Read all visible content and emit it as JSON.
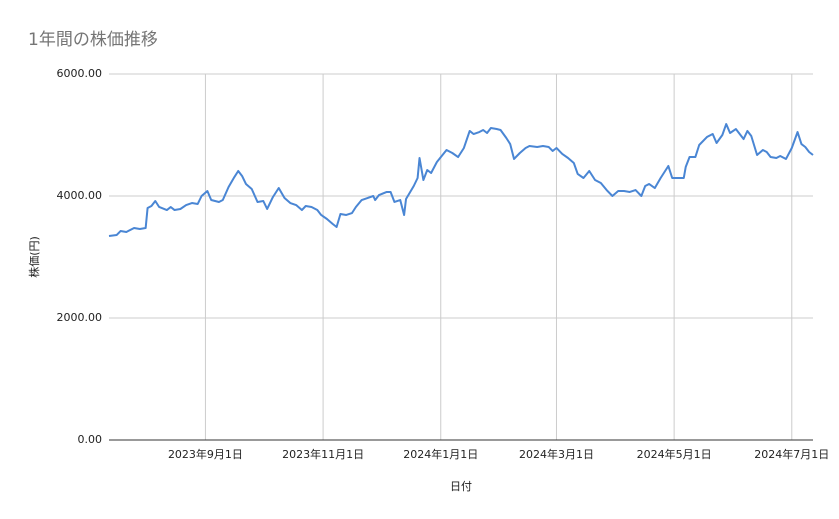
{
  "chart_data": {
    "type": "line",
    "title": "1年間の株価推移",
    "x_label": "日付",
    "y_label": "株価(円)",
    "x": [
      "2023-07-13",
      "2023-07-17",
      "2023-07-19",
      "2023-07-22",
      "2023-07-26",
      "2023-07-29",
      "2023-08-01",
      "2023-08-02",
      "2023-08-04",
      "2023-08-06",
      "2023-08-08",
      "2023-08-12",
      "2023-08-14",
      "2023-08-16",
      "2023-08-19",
      "2023-08-22",
      "2023-08-25",
      "2023-08-28",
      "2023-08-30",
      "2023-09-02",
      "2023-09-04",
      "2023-09-08",
      "2023-09-10",
      "2023-09-13",
      "2023-09-16",
      "2023-09-18",
      "2023-09-20",
      "2023-09-22",
      "2023-09-25",
      "2023-09-28",
      "2023-10-01",
      "2023-10-03",
      "2023-10-06",
      "2023-10-09",
      "2023-10-12",
      "2023-10-15",
      "2023-10-18",
      "2023-10-21",
      "2023-10-23",
      "2023-10-26",
      "2023-10-29",
      "2023-10-31",
      "2023-11-03",
      "2023-11-06",
      "2023-11-08",
      "2023-11-10",
      "2023-11-13",
      "2023-11-16",
      "2023-11-18",
      "2023-11-21",
      "2023-11-24",
      "2023-11-27",
      "2023-11-28",
      "2023-11-30",
      "2023-12-04",
      "2023-12-06",
      "2023-12-08",
      "2023-12-11",
      "2023-12-13",
      "2023-12-14",
      "2023-12-18",
      "2023-12-20",
      "2023-12-21",
      "2023-12-23",
      "2023-12-25",
      "2023-12-27",
      "2023-12-30",
      "2024-01-04",
      "2024-01-07",
      "2024-01-10",
      "2024-01-13",
      "2024-01-16",
      "2024-01-18",
      "2024-01-21",
      "2024-01-23",
      "2024-01-25",
      "2024-01-27",
      "2024-01-30",
      "2024-02-01",
      "2024-02-04",
      "2024-02-06",
      "2024-02-08",
      "2024-02-11",
      "2024-02-14",
      "2024-02-16",
      "2024-02-20",
      "2024-02-23",
      "2024-02-26",
      "2024-02-28",
      "2024-03-01",
      "2024-03-04",
      "2024-03-07",
      "2024-03-10",
      "2024-03-12",
      "2024-03-15",
      "2024-03-18",
      "2024-03-21",
      "2024-03-24",
      "2024-03-27",
      "2024-03-30",
      "2024-04-02",
      "2024-04-05",
      "2024-04-08",
      "2024-04-11",
      "2024-04-14",
      "2024-04-16",
      "2024-04-18",
      "2024-04-21",
      "2024-04-24",
      "2024-04-28",
      "2024-04-30",
      "2024-05-02",
      "2024-05-06",
      "2024-05-07",
      "2024-05-09",
      "2024-05-12",
      "2024-05-14",
      "2024-05-18",
      "2024-05-21",
      "2024-05-23",
      "2024-05-26",
      "2024-05-28",
      "2024-05-30",
      "2024-06-02",
      "2024-06-04",
      "2024-06-06",
      "2024-06-08",
      "2024-06-10",
      "2024-06-13",
      "2024-06-16",
      "2024-06-18",
      "2024-06-20",
      "2024-06-23",
      "2024-06-25",
      "2024-06-28",
      "2024-07-01",
      "2024-07-04",
      "2024-07-06",
      "2024-07-08",
      "2024-07-10",
      "2024-07-12"
    ],
    "series": [
      {
        "name": "株価(円)",
        "color": "#4a86d4",
        "values": [
          3344,
          3361,
          3426,
          3410,
          3475,
          3459,
          3475,
          3803,
          3836,
          3918,
          3820,
          3770,
          3820,
          3770,
          3787,
          3852,
          3885,
          3869,
          4000,
          4082,
          3934,
          3902,
          3934,
          4148,
          4311,
          4410,
          4328,
          4197,
          4115,
          3902,
          3918,
          3787,
          3984,
          4131,
          3967,
          3885,
          3852,
          3770,
          3836,
          3820,
          3770,
          3689,
          3623,
          3541,
          3492,
          3705,
          3689,
          3721,
          3820,
          3934,
          3967,
          4000,
          3934,
          4016,
          4066,
          4066,
          3902,
          3934,
          3689,
          3951,
          4164,
          4295,
          4623,
          4262,
          4426,
          4377,
          4557,
          4754,
          4705,
          4639,
          4787,
          5066,
          5016,
          5049,
          5082,
          5033,
          5115,
          5098,
          5082,
          4951,
          4852,
          4607,
          4705,
          4787,
          4820,
          4803,
          4820,
          4803,
          4738,
          4787,
          4689,
          4623,
          4541,
          4361,
          4295,
          4410,
          4262,
          4213,
          4098,
          4000,
          4082,
          4082,
          4066,
          4098,
          4000,
          4164,
          4197,
          4131,
          4295,
          4492,
          4295,
          4295,
          4295,
          4475,
          4639,
          4639,
          4836,
          4967,
          5016,
          4869,
          5000,
          5180,
          5033,
          5098,
          5016,
          4934,
          5066,
          4984,
          4672,
          4754,
          4721,
          4639,
          4623,
          4656,
          4607,
          4787,
          5049,
          4852,
          4803,
          4721,
          4672
        ]
      }
    ],
    "xlim": [
      "2023-07-13",
      "2024-07-12"
    ],
    "xticks": [
      {
        "value": "2023-09-01",
        "label": "2023年9月1日"
      },
      {
        "value": "2023-11-01",
        "label": "2023年11月1日"
      },
      {
        "value": "2024-01-01",
        "label": "2024年1月1日"
      },
      {
        "value": "2024-03-01",
        "label": "2024年3月1日"
      },
      {
        "value": "2024-05-01",
        "label": "2024年5月1日"
      },
      {
        "value": "2024-07-01",
        "label": "2024年7月1日"
      }
    ],
    "ylim": [
      0,
      6000
    ],
    "yticks": [
      {
        "value": 0,
        "label": "0.00"
      },
      {
        "value": 2000,
        "label": "2000.00"
      },
      {
        "value": 4000,
        "label": "4000.00"
      },
      {
        "value": 6000,
        "label": "6000.00"
      }
    ],
    "grid": true
  }
}
